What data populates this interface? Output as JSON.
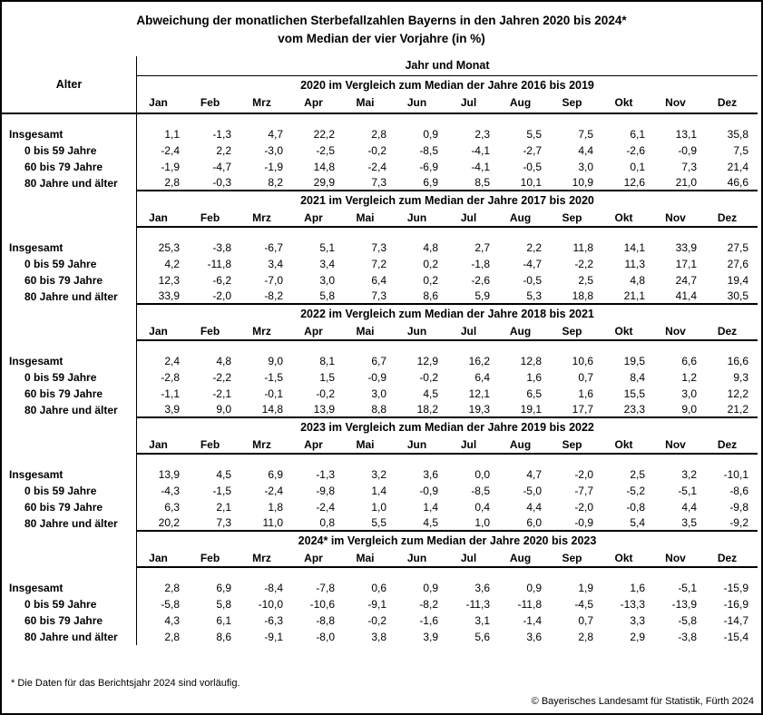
{
  "title": {
    "line1": "Abweichung der monatlichen Sterbefallzahlen Bayerns in den Jahren 2020 bis 2024*",
    "line2": "vom Median der vier Vorjahre (in %)"
  },
  "table": {
    "row_group_header": "Alter",
    "col_group_header": "Jahr und Monat"
  },
  "footer": {
    "footnote": "* Die Daten für das Berichtsjahr 2024 sind vorläufig.",
    "copyright": "© Bayerisches Landesamt für Statistik, Fürth 2024"
  },
  "chart_data": {
    "type": "table",
    "title": "Abweichung der monatlichen Sterbefallzahlen Bayerns in den Jahren 2020 bis 2024* vom Median der vier Vorjahre (in %)",
    "unit": "%",
    "months": [
      "Jan",
      "Feb",
      "Mrz",
      "Apr",
      "Mai",
      "Jun",
      "Jul",
      "Aug",
      "Sep",
      "Okt",
      "Nov",
      "Dez"
    ],
    "age_groups": [
      "Insgesamt",
      "0 bis 59 Jahre",
      "60 bis 79 Jahre",
      "80 Jahre und älter"
    ],
    "sections": [
      {
        "year": "2020",
        "header": "2020 im Vergleich zum Median der Jahre 2016 bis 2019",
        "rows": [
          [
            "1,1",
            "-1,3",
            "4,7",
            "22,2",
            "2,8",
            "0,9",
            "2,3",
            "5,5",
            "7,5",
            "6,1",
            "13,1",
            "35,8"
          ],
          [
            "-2,4",
            "2,2",
            "-3,0",
            "-2,5",
            "-0,2",
            "-8,5",
            "-4,1",
            "-2,7",
            "4,4",
            "-2,6",
            "-0,9",
            "7,5"
          ],
          [
            "-1,9",
            "-4,7",
            "-1,9",
            "14,8",
            "-2,4",
            "-6,9",
            "-4,1",
            "-0,5",
            "3,0",
            "0,1",
            "7,3",
            "21,4"
          ],
          [
            "2,8",
            "-0,3",
            "8,2",
            "29,9",
            "7,3",
            "6,9",
            "8,5",
            "10,1",
            "10,9",
            "12,6",
            "21,0",
            "46,6"
          ]
        ]
      },
      {
        "year": "2021",
        "header": "2021 im Vergleich zum Median der Jahre 2017 bis 2020",
        "rows": [
          [
            "25,3",
            "-3,8",
            "-6,7",
            "5,1",
            "7,3",
            "4,8",
            "2,7",
            "2,2",
            "11,8",
            "14,1",
            "33,9",
            "27,5"
          ],
          [
            "4,2",
            "-11,8",
            "3,4",
            "3,4",
            "7,2",
            "0,2",
            "-1,8",
            "-4,7",
            "-2,2",
            "11,3",
            "17,1",
            "27,6"
          ],
          [
            "12,3",
            "-6,2",
            "-7,0",
            "3,0",
            "6,4",
            "0,2",
            "-2,6",
            "-0,5",
            "2,5",
            "4,8",
            "24,7",
            "19,4"
          ],
          [
            "33,9",
            "-2,0",
            "-8,2",
            "5,8",
            "7,3",
            "8,6",
            "5,9",
            "5,3",
            "18,8",
            "21,1",
            "41,4",
            "30,5"
          ]
        ]
      },
      {
        "year": "2022",
        "header": "2022 im Vergleich zum Median der Jahre 2018 bis 2021",
        "rows": [
          [
            "2,4",
            "4,8",
            "9,0",
            "8,1",
            "6,7",
            "12,9",
            "16,2",
            "12,8",
            "10,6",
            "19,5",
            "6,6",
            "16,6"
          ],
          [
            "-2,8",
            "-2,2",
            "-1,5",
            "1,5",
            "-0,9",
            "-0,2",
            "6,4",
            "1,6",
            "0,7",
            "8,4",
            "1,2",
            "9,3"
          ],
          [
            "-1,1",
            "-2,1",
            "-0,1",
            "-0,2",
            "3,0",
            "4,5",
            "12,1",
            "6,5",
            "1,6",
            "15,5",
            "3,0",
            "12,2"
          ],
          [
            "3,9",
            "9,0",
            "14,8",
            "13,9",
            "8,8",
            "18,2",
            "19,3",
            "19,1",
            "17,7",
            "23,3",
            "9,0",
            "21,2"
          ]
        ]
      },
      {
        "year": "2023",
        "header": "2023 im Vergleich zum Median der Jahre 2019 bis 2022",
        "rows": [
          [
            "13,9",
            "4,5",
            "6,9",
            "-1,3",
            "3,2",
            "3,6",
            "0,0",
            "4,7",
            "-2,0",
            "2,5",
            "3,2",
            "-10,1"
          ],
          [
            "-4,3",
            "-1,5",
            "-2,4",
            "-9,8",
            "1,4",
            "-0,9",
            "-8,5",
            "-5,0",
            "-7,7",
            "-5,2",
            "-5,1",
            "-8,6"
          ],
          [
            "6,3",
            "2,1",
            "1,8",
            "-2,4",
            "1,0",
            "1,4",
            "0,4",
            "4,4",
            "-2,0",
            "-0,8",
            "4,4",
            "-9,8"
          ],
          [
            "20,2",
            "7,3",
            "11,0",
            "0,8",
            "5,5",
            "4,5",
            "1,0",
            "6,0",
            "-0,9",
            "5,4",
            "3,5",
            "-9,2"
          ]
        ]
      },
      {
        "year": "2024",
        "header": "2024* im Vergleich zum Median der Jahre 2020 bis 2023",
        "rows": [
          [
            "2,8",
            "6,9",
            "-8,4",
            "-7,8",
            "0,6",
            "0,9",
            "3,6",
            "0,9",
            "1,9",
            "1,6",
            "-5,1",
            "-15,9"
          ],
          [
            "-5,8",
            "5,8",
            "-10,0",
            "-10,6",
            "-9,1",
            "-8,2",
            "-11,3",
            "-11,8",
            "-4,5",
            "-13,3",
            "-13,9",
            "-16,9"
          ],
          [
            "4,3",
            "6,1",
            "-6,3",
            "-8,8",
            "-0,2",
            "-1,6",
            "3,1",
            "-1,4",
            "0,7",
            "3,3",
            "-5,8",
            "-14,7"
          ],
          [
            "2,8",
            "8,6",
            "-9,1",
            "-8,0",
            "3,8",
            "3,9",
            "5,6",
            "3,6",
            "2,8",
            "2,9",
            "-3,8",
            "-15,4"
          ]
        ]
      }
    ]
  }
}
